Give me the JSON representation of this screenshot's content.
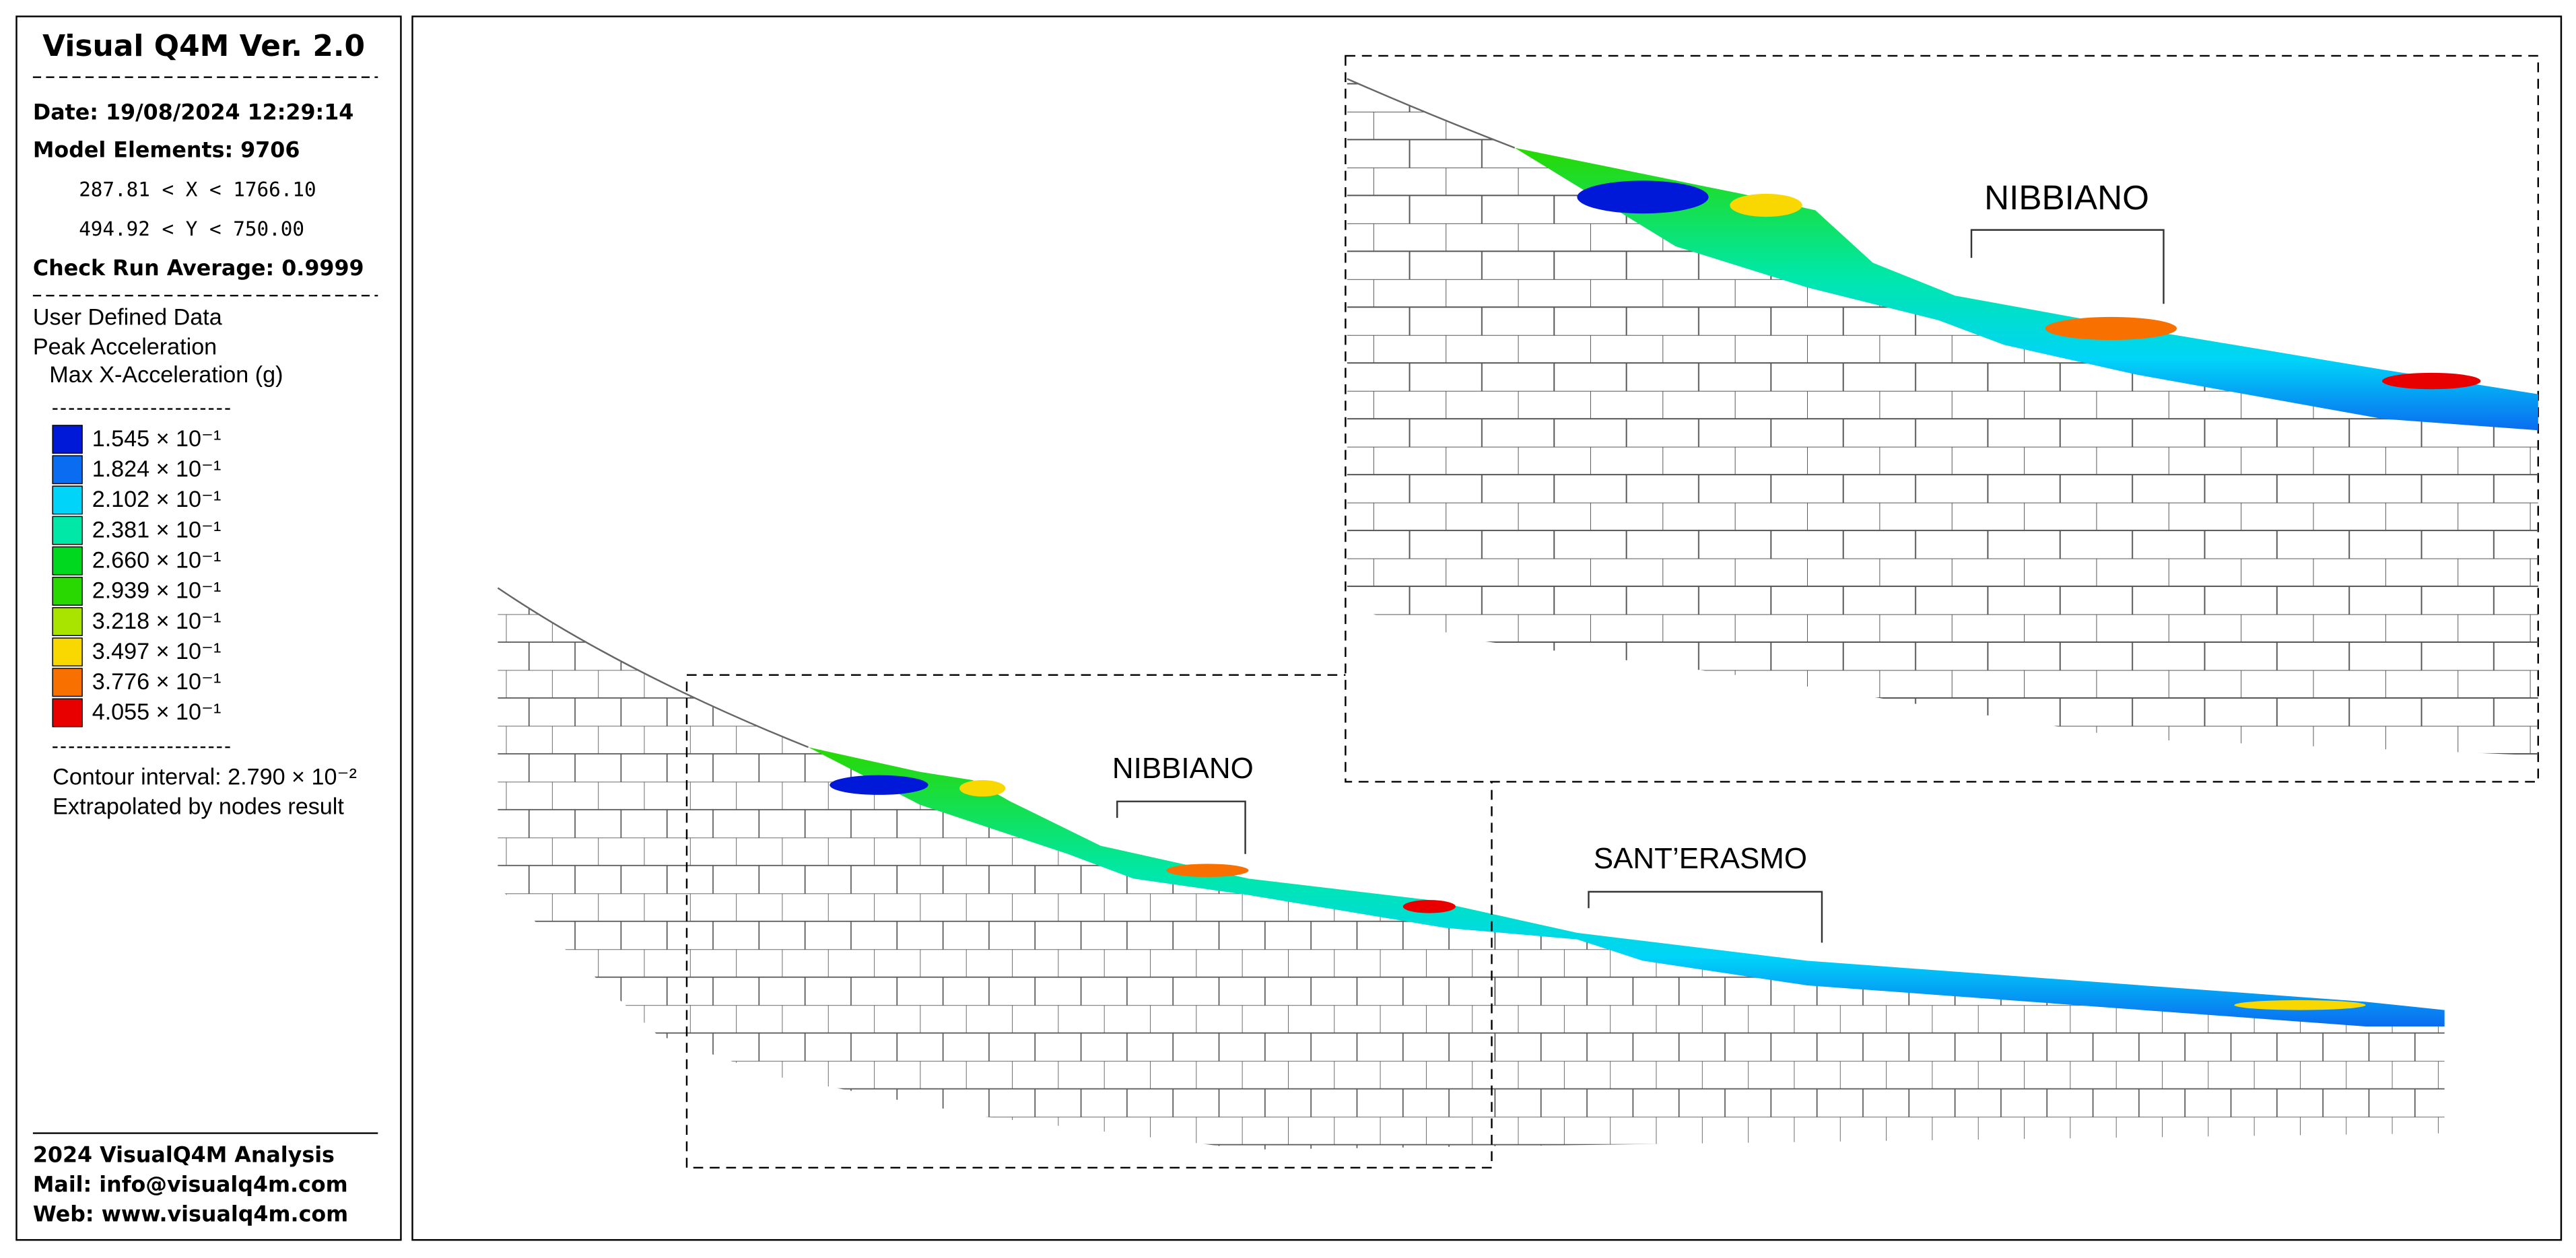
{
  "panel": {
    "title": "Visual Q4M Ver. 2.0",
    "date": "Date: 19/08/2024 12:29:14",
    "elements": "Model Elements: 9706",
    "x_range": "287.81 < X < 1766.10",
    "y_range": "494.92 < Y < 750.00",
    "check": "Check Run Average: 0.9999",
    "data_source": "User Defined Data",
    "quantity": "Peak Acceleration",
    "component": "Max X-Acceleration (g)",
    "legend": [
      {
        "color": "#0018d8",
        "label": "1.545 × 10⁻¹"
      },
      {
        "color": "#0a6cf0",
        "label": "1.824 × 10⁻¹"
      },
      {
        "color": "#00d4f8",
        "label": "2.102 × 10⁻¹"
      },
      {
        "color": "#00e8a8",
        "label": "2.381 × 10⁻¹"
      },
      {
        "color": "#00d820",
        "label": "2.660 × 10⁻¹"
      },
      {
        "color": "#28d800",
        "label": "2.939 × 10⁻¹"
      },
      {
        "color": "#a8e400",
        "label": "3.218 × 10⁻¹"
      },
      {
        "color": "#f8d800",
        "label": "3.497 × 10⁻¹"
      },
      {
        "color": "#f87000",
        "label": "3.776 × 10⁻¹"
      },
      {
        "color": "#e80000",
        "label": "4.055 × 10⁻¹"
      }
    ],
    "contour": "Contour interval: 2.790 × 10⁻²",
    "method": "Extrapolated by nodes result",
    "footer": [
      "2024 VisualQ4M Analysis",
      "Mail: info@visualq4m.com",
      "Web: www.visualq4m.com"
    ]
  },
  "view": {
    "labels": [
      "NIBBIANO",
      "SANT’ERASMO"
    ],
    "inset_label": "NIBBIANO"
  }
}
